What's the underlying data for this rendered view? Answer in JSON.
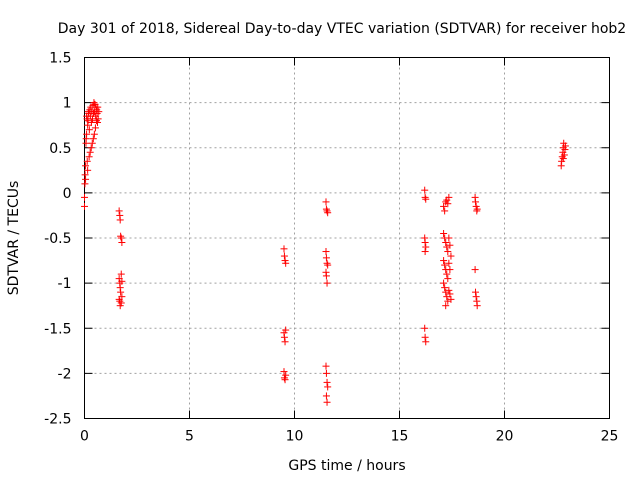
{
  "chart_data": {
    "type": "scatter",
    "title": "Day 301 of 2018, Sidereal Day-to-day VTEC variation (SDTVAR) for receiver hob2",
    "xlabel": "GPS time / hours",
    "ylabel": "SDTVAR / TECUs",
    "xlim": [
      0,
      25
    ],
    "ylim": [
      -2.5,
      1.5
    ],
    "xticks": [
      0,
      5,
      10,
      15,
      20,
      25
    ],
    "xtick_labels": [
      "0",
      "5",
      "10",
      "15",
      "20",
      "25"
    ],
    "yticks": [
      -2.5,
      -2,
      -1.5,
      -1,
      -0.5,
      0,
      0.5,
      1,
      1.5
    ],
    "ytick_labels": [
      "-2.5",
      "-2",
      "-1.5",
      "-1",
      "-0.5",
      "0",
      "0.5",
      "1",
      "1.5"
    ],
    "grid": true,
    "marker": "+",
    "color": "#ff0000",
    "series": [
      {
        "name": "SDTVAR",
        "points": [
          [
            0.0,
            -0.15
          ],
          [
            0.0,
            -0.05
          ],
          [
            0.02,
            0.1
          ],
          [
            0.03,
            0.2
          ],
          [
            0.05,
            0.3
          ],
          [
            0.05,
            0.15
          ],
          [
            0.07,
            0.55
          ],
          [
            0.08,
            0.6
          ],
          [
            0.1,
            0.65
          ],
          [
            0.1,
            0.85
          ],
          [
            0.12,
            0.82
          ],
          [
            0.13,
            0.35
          ],
          [
            0.15,
            0.25
          ],
          [
            0.15,
            0.75
          ],
          [
            0.17,
            0.8
          ],
          [
            0.18,
            0.9
          ],
          [
            0.2,
            0.88
          ],
          [
            0.22,
            0.4
          ],
          [
            0.23,
            0.7
          ],
          [
            0.25,
            0.92
          ],
          [
            0.27,
            0.45
          ],
          [
            0.28,
            0.85
          ],
          [
            0.3,
            0.95
          ],
          [
            0.32,
            0.5
          ],
          [
            0.33,
            0.78
          ],
          [
            0.35,
            0.9
          ],
          [
            0.37,
            0.55
          ],
          [
            0.38,
            0.82
          ],
          [
            0.4,
            0.97
          ],
          [
            0.42,
            0.6
          ],
          [
            0.43,
            0.88
          ],
          [
            0.45,
            1.0
          ],
          [
            0.47,
            0.65
          ],
          [
            0.48,
            0.9
          ],
          [
            0.5,
            0.98
          ],
          [
            0.52,
            0.72
          ],
          [
            0.53,
            0.85
          ],
          [
            0.55,
            0.95
          ],
          [
            0.57,
            0.8
          ],
          [
            0.58,
            0.92
          ],
          [
            0.6,
            0.88
          ],
          [
            0.62,
            0.78
          ],
          [
            0.63,
            0.95
          ],
          [
            0.65,
            0.82
          ],
          [
            0.68,
            0.9
          ],
          [
            1.65,
            -0.2
          ],
          [
            1.68,
            -0.25
          ],
          [
            1.7,
            -0.3
          ],
          [
            1.72,
            -0.48
          ],
          [
            1.75,
            -0.5
          ],
          [
            1.78,
            -0.55
          ],
          [
            1.65,
            -0.95
          ],
          [
            1.68,
            -1.0
          ],
          [
            1.7,
            -1.05
          ],
          [
            1.72,
            -1.1
          ],
          [
            1.75,
            -0.9
          ],
          [
            1.78,
            -0.98
          ],
          [
            1.65,
            -1.18
          ],
          [
            1.68,
            -1.2
          ],
          [
            1.7,
            -1.25
          ],
          [
            1.75,
            -1.22
          ],
          [
            1.78,
            -1.15
          ],
          [
            9.5,
            -0.62
          ],
          [
            9.52,
            -0.7
          ],
          [
            9.55,
            -0.75
          ],
          [
            9.58,
            -0.78
          ],
          [
            9.5,
            -1.55
          ],
          [
            9.52,
            -1.6
          ],
          [
            9.55,
            -1.65
          ],
          [
            9.58,
            -1.52
          ],
          [
            9.5,
            -1.98
          ],
          [
            9.52,
            -2.05
          ],
          [
            9.55,
            -2.07
          ],
          [
            9.58,
            -2.02
          ],
          [
            11.5,
            -0.1
          ],
          [
            11.52,
            -0.18
          ],
          [
            11.55,
            -0.2
          ],
          [
            11.58,
            -0.22
          ],
          [
            11.5,
            -0.65
          ],
          [
            11.52,
            -0.72
          ],
          [
            11.55,
            -0.78
          ],
          [
            11.58,
            -0.8
          ],
          [
            11.5,
            -0.88
          ],
          [
            11.52,
            -0.92
          ],
          [
            11.55,
            -1.0
          ],
          [
            11.5,
            -1.92
          ],
          [
            11.52,
            -2.0
          ],
          [
            11.55,
            -2.1
          ],
          [
            11.58,
            -2.15
          ],
          [
            11.52,
            -2.25
          ],
          [
            11.55,
            -2.32
          ],
          [
            16.2,
            0.03
          ],
          [
            16.22,
            -0.05
          ],
          [
            16.25,
            -0.07
          ],
          [
            16.2,
            -0.5
          ],
          [
            16.22,
            -0.55
          ],
          [
            16.25,
            -0.6
          ],
          [
            16.22,
            -0.65
          ],
          [
            16.2,
            -1.5
          ],
          [
            16.22,
            -1.6
          ],
          [
            16.25,
            -1.65
          ],
          [
            17.1,
            -0.15
          ],
          [
            17.15,
            -0.2
          ],
          [
            17.2,
            -0.1
          ],
          [
            17.25,
            -0.08
          ],
          [
            17.3,
            -0.12
          ],
          [
            17.35,
            -0.05
          ],
          [
            17.1,
            -0.45
          ],
          [
            17.15,
            -0.5
          ],
          [
            17.2,
            -0.55
          ],
          [
            17.25,
            -0.6
          ],
          [
            17.3,
            -0.65
          ],
          [
            17.35,
            -0.5
          ],
          [
            17.4,
            -0.58
          ],
          [
            17.45,
            -0.7
          ],
          [
            17.1,
            -0.75
          ],
          [
            17.15,
            -0.8
          ],
          [
            17.2,
            -0.85
          ],
          [
            17.25,
            -0.9
          ],
          [
            17.3,
            -0.95
          ],
          [
            17.35,
            -0.78
          ],
          [
            17.4,
            -0.85
          ],
          [
            17.1,
            -1.0
          ],
          [
            17.15,
            -1.05
          ],
          [
            17.2,
            -1.1
          ],
          [
            17.25,
            -1.15
          ],
          [
            17.3,
            -1.2
          ],
          [
            17.35,
            -1.08
          ],
          [
            17.4,
            -1.12
          ],
          [
            17.45,
            -1.18
          ],
          [
            17.2,
            -1.25
          ],
          [
            18.6,
            -0.05
          ],
          [
            18.62,
            -0.1
          ],
          [
            18.65,
            -0.15
          ],
          [
            18.68,
            -0.2
          ],
          [
            18.7,
            -0.18
          ],
          [
            18.6,
            -0.85
          ],
          [
            18.62,
            -1.1
          ],
          [
            18.65,
            -1.15
          ],
          [
            18.68,
            -1.2
          ],
          [
            18.7,
            -1.25
          ],
          [
            22.7,
            0.3
          ],
          [
            22.72,
            0.35
          ],
          [
            22.75,
            0.4
          ],
          [
            22.78,
            0.45
          ],
          [
            22.8,
            0.5
          ],
          [
            22.82,
            0.55
          ],
          [
            22.85,
            0.42
          ],
          [
            22.88,
            0.48
          ],
          [
            22.9,
            0.52
          ],
          [
            22.8,
            0.38
          ]
        ]
      }
    ]
  }
}
